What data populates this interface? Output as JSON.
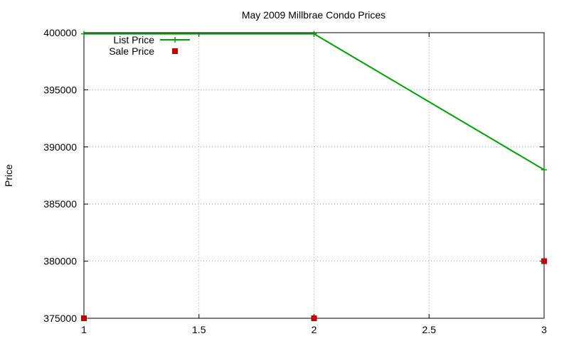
{
  "chart_data": {
    "type": "line",
    "title": "May 2009 Millbrae Condo Prices",
    "xlabel": "",
    "ylabel": "Price",
    "xlim": [
      1,
      3
    ],
    "ylim": [
      375000,
      400000
    ],
    "x_ticks": [
      "1",
      "1.5",
      "2",
      "2.5",
      "3"
    ],
    "x_tick_values": [
      1,
      1.5,
      2,
      2.5,
      3
    ],
    "y_ticks": [
      "375000",
      "380000",
      "385000",
      "390000",
      "395000",
      "400000"
    ],
    "y_tick_values": [
      375000,
      380000,
      385000,
      390000,
      395000,
      400000
    ],
    "grid": true,
    "legend_position": "top-left",
    "series": [
      {
        "name": "List Price",
        "style": "linespoints",
        "marker": "plus",
        "color": "#00a000",
        "x": [
          1,
          2,
          3
        ],
        "values": [
          399900,
          399900,
          388000
        ]
      },
      {
        "name": "Sale Price",
        "style": "points",
        "marker": "square",
        "color": "#c00000",
        "x": [
          1,
          2,
          3
        ],
        "values": [
          375000,
          375000,
          380000
        ]
      }
    ]
  }
}
